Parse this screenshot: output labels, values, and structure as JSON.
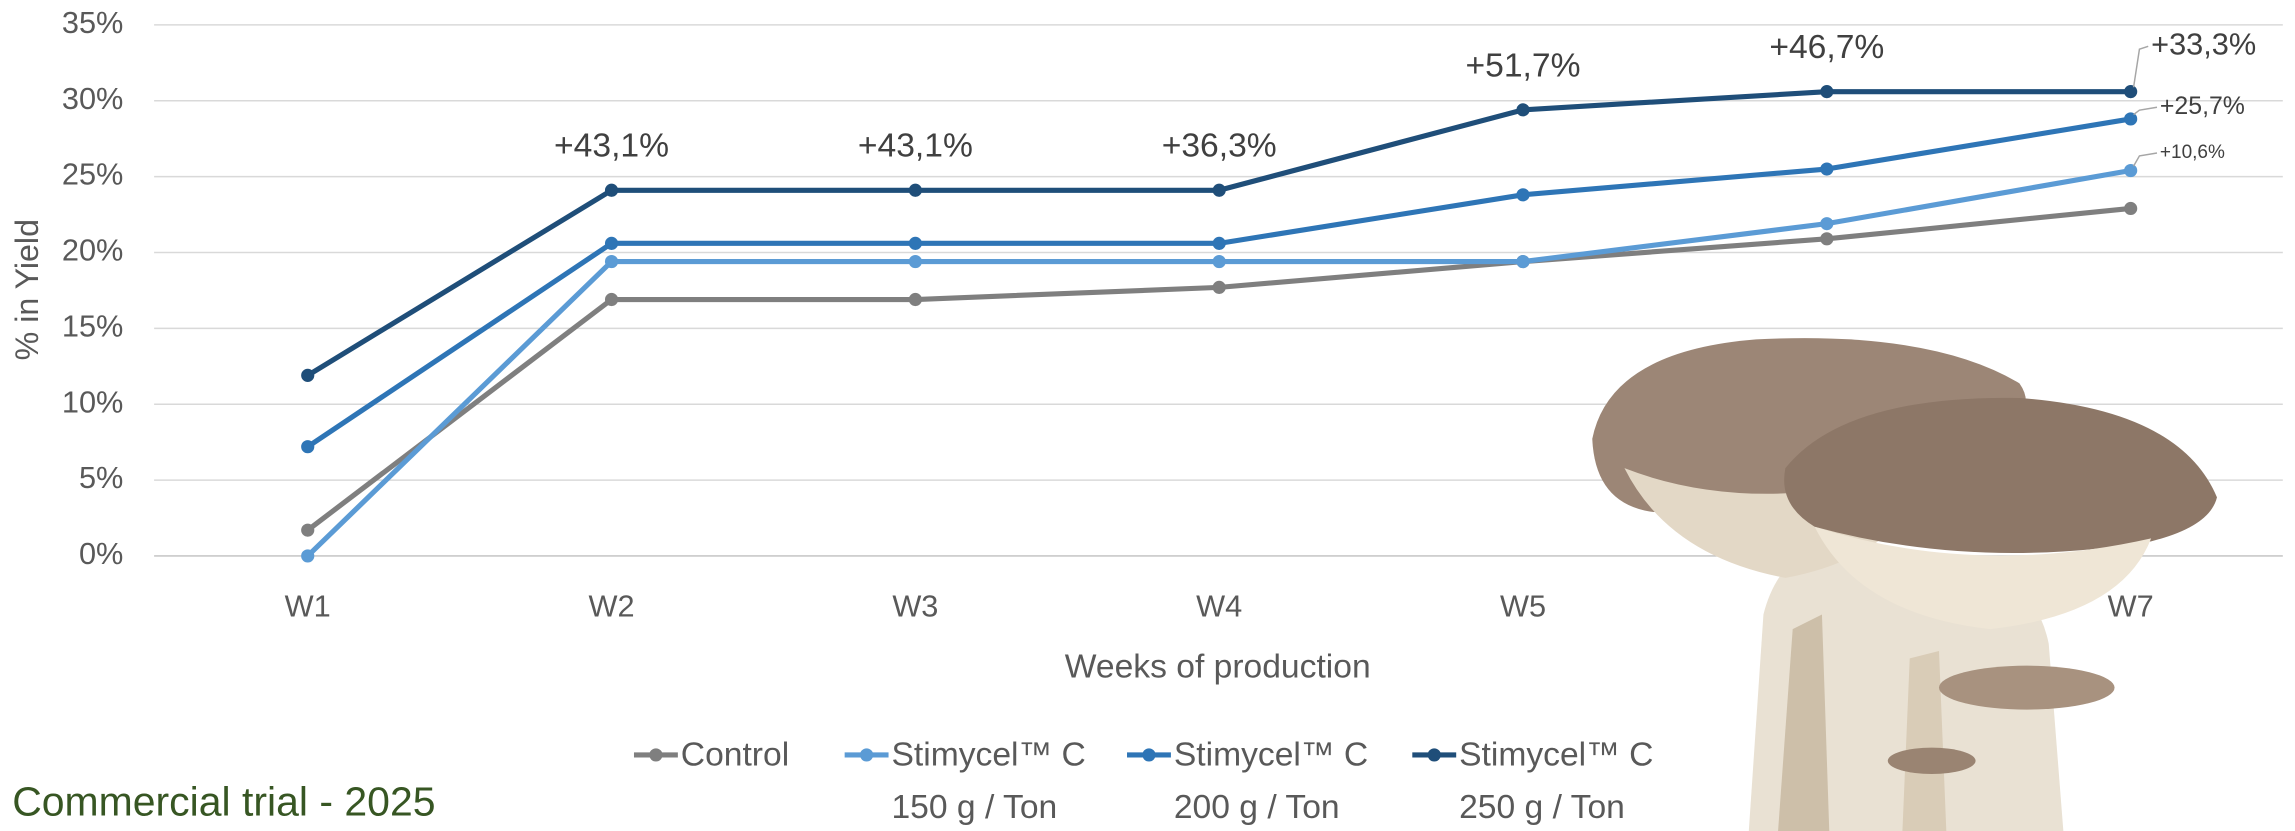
{
  "chart_data": {
    "type": "line",
    "y_label": "% in Yield",
    "x_label": "Weeks of production",
    "footnote": "Commercial trial - 2025",
    "categories": [
      "W1",
      "W2",
      "W3",
      "W4",
      "W5",
      null,
      "W7"
    ],
    "ylim": [
      0,
      35
    ],
    "yticks": [
      {
        "value": 0,
        "label": "0%"
      },
      {
        "value": 5,
        "label": "5%"
      },
      {
        "value": 10,
        "label": "10%"
      },
      {
        "value": 15,
        "label": "15%"
      },
      {
        "value": 20,
        "label": "20%"
      },
      {
        "value": 25,
        "label": "25%"
      },
      {
        "value": 30,
        "label": "30%"
      },
      {
        "value": 35,
        "label": "35%"
      }
    ],
    "grid": true,
    "series": [
      {
        "name": "Control",
        "color": "#7f7f7f",
        "values": [
          1.7,
          16.9,
          16.9,
          17.7,
          19.4,
          20.9,
          22.9
        ]
      },
      {
        "name": "Stimycel™ C\n150 g / Ton",
        "color": "#5b9bd5",
        "values": [
          0,
          19.4,
          19.4,
          19.4,
          19.4,
          21.9,
          25.4
        ],
        "point_labels": [
          null,
          null,
          null,
          null,
          null,
          null,
          "+10,6%"
        ]
      },
      {
        "name": "Stimycel™ C\n200 g / Ton",
        "color": "#2e75b6",
        "values": [
          7.2,
          20.6,
          20.6,
          20.6,
          23.8,
          25.5,
          28.8
        ],
        "point_labels": [
          null,
          null,
          null,
          null,
          null,
          null,
          "+25,7%"
        ]
      },
      {
        "name": "Stimycel™ C\n250 g / Ton",
        "color": "#1f4e79",
        "values": [
          11.9,
          24.1,
          24.1,
          24.1,
          29.4,
          30.6,
          30.6
        ],
        "point_labels": [
          null,
          "+43,1%",
          "+43,1%",
          "+36,3%",
          "+51,7%",
          "+46,7%",
          "+33,3%"
        ]
      }
    ]
  }
}
